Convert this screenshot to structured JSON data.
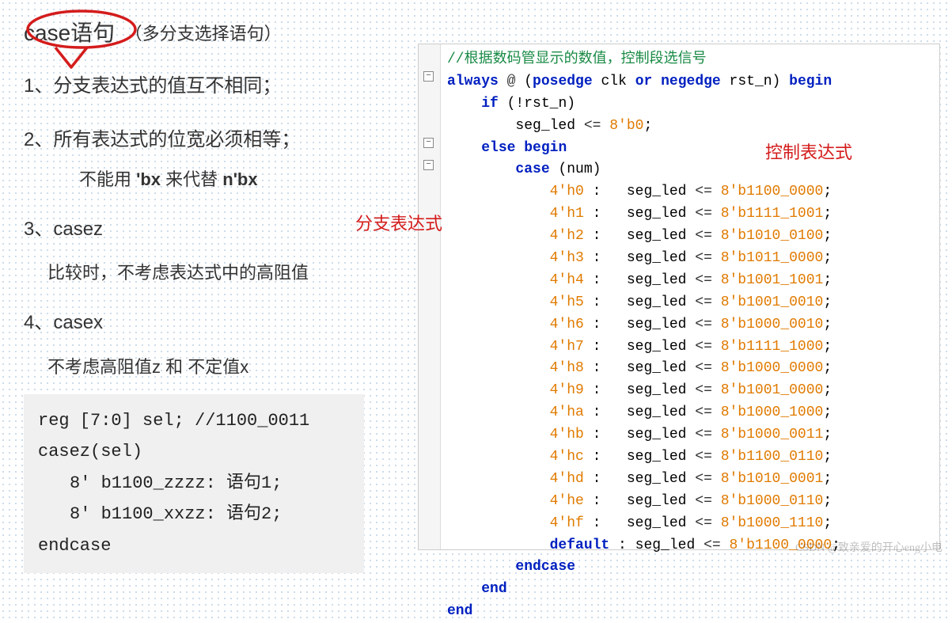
{
  "left": {
    "title": "case语句",
    "subtitle": "（多分支选择语句）",
    "rule1": "1、分支表达式的值互不相同；",
    "rule2": "2、所有表达式的位宽必须相等；",
    "rule2_sub_pre": "不能用 ",
    "rule2_sub_b1": "'bx",
    "rule2_sub_mid": " 来代替 ",
    "rule2_sub_b2": "n'bx",
    "rule3": "3、casez",
    "rule3_desc": "比较时，不考虑表达式中的高阻值",
    "rule4": "4、casex",
    "rule4_desc": "不考虑高阻值z 和  不定值x",
    "snippet": {
      "l1": "reg [7:0] sel; //1100_0011",
      "l2": "casez(sel)",
      "l3": "8' b1100_zzzz: 语句1;",
      "l4": "8' b1100_xxzz: 语句2;",
      "l5": "endcase"
    }
  },
  "code": {
    "comment": "//根据数码管显示的数值，控制段选信号",
    "always_kw": "always",
    "at": "@",
    "posedge": "posedge",
    "or": "or",
    "negedge": "negedge",
    "begin": "begin",
    "if": "if",
    "not_rst": "(!rst_n)",
    "seg_led": "seg_led",
    "assign": "<=",
    "zero_val": "8'b0",
    "else": "else",
    "case_kw": "case",
    "num": "(num)",
    "default_kw": "default",
    "default_val": "8'b1100_0000",
    "endcase": "endcase",
    "end": "end",
    "clk": "clk",
    "rst_n": "rst_n",
    "anno1": "控制表达式",
    "anno2": "分支表达式",
    "cases": [
      {
        "k": "4'h0",
        "v": "8'b1100_0000"
      },
      {
        "k": "4'h1",
        "v": "8'b1111_1001"
      },
      {
        "k": "4'h2",
        "v": "8'b1010_0100"
      },
      {
        "k": "4'h3",
        "v": "8'b1011_0000"
      },
      {
        "k": "4'h4",
        "v": "8'b1001_1001"
      },
      {
        "k": "4'h5",
        "v": "8'b1001_0010"
      },
      {
        "k": "4'h6",
        "v": "8'b1000_0010"
      },
      {
        "k": "4'h7",
        "v": "8'b1111_1000"
      },
      {
        "k": "4'h8",
        "v": "8'b1000_0000"
      },
      {
        "k": "4'h9",
        "v": "8'b1001_0000"
      },
      {
        "k": "4'ha",
        "v": "8'b1000_1000"
      },
      {
        "k": "4'hb",
        "v": "8'b1000_0011"
      },
      {
        "k": "4'hc",
        "v": "8'b1100_0110"
      },
      {
        "k": "4'hd",
        "v": "8'b1010_0001"
      },
      {
        "k": "4'he",
        "v": "8'b1000_0110"
      },
      {
        "k": "4'hf",
        "v": "8'b1000_1110"
      }
    ]
  },
  "watermark": "CSDN @致亲爱的开心eng小电",
  "colors": {
    "comment": "#198a45",
    "keyword": "#0020c0",
    "number": "#e07a00",
    "ink": "#d41c1c",
    "grid_dot": "#bcd0e3"
  }
}
